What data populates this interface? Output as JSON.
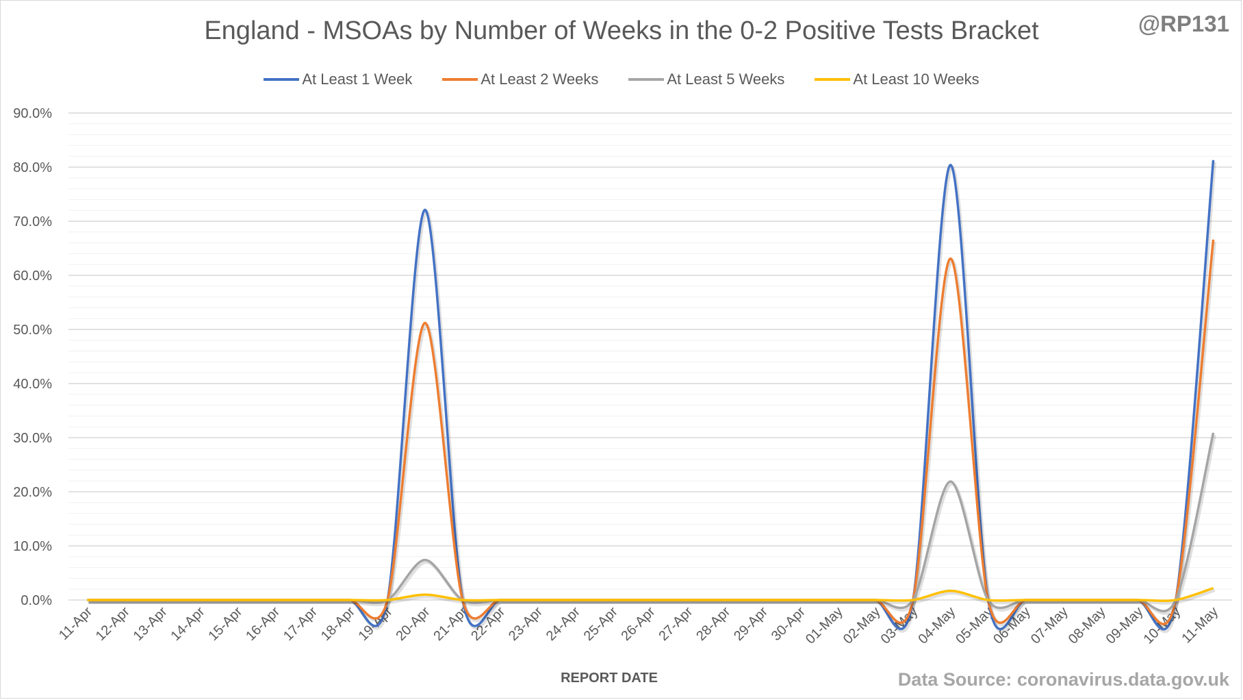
{
  "header": {
    "handle": "@RP131"
  },
  "footer": {
    "source": "Data Source: coronavirus.data.gov.uk"
  },
  "chart_data": {
    "type": "line",
    "title": "England - MSOAs by Number of Weeks in the 0-2 Positive Tests Bracket",
    "xlabel": "REPORT DATE",
    "ylabel": "",
    "ylim": [
      0,
      90
    ],
    "y_format": "percent-one-decimal",
    "yticks": [
      0,
      10,
      20,
      30,
      40,
      50,
      60,
      70,
      80,
      90
    ],
    "grid": "horizontal major and minor",
    "legend_position": "top",
    "smooth": true,
    "categories": [
      "11-Apr",
      "12-Apr",
      "13-Apr",
      "14-Apr",
      "15-Apr",
      "16-Apr",
      "17-Apr",
      "18-Apr",
      "19-Apr",
      "20-Apr",
      "21-Apr",
      "22-Apr",
      "23-Apr",
      "24-Apr",
      "25-Apr",
      "26-Apr",
      "27-Apr",
      "28-Apr",
      "29-Apr",
      "30-Apr",
      "01-May",
      "02-May",
      "03-May",
      "04-May",
      "05-May",
      "06-May",
      "07-May",
      "08-May",
      "09-May",
      "10-May",
      "11-May"
    ],
    "series": [
      {
        "name": "At Least 1 Week",
        "color": "#4472c4",
        "values": [
          0,
          0,
          0,
          0,
          0,
          0,
          0,
          0,
          0,
          72.1,
          0,
          0,
          0,
          0,
          0,
          0,
          0,
          0,
          0,
          0,
          0,
          0,
          0,
          80.4,
          0,
          0,
          0,
          0,
          0,
          0,
          81.3
        ]
      },
      {
        "name": "At Least 2 Weeks",
        "color": "#ed7d31",
        "values": [
          0,
          0,
          0,
          0,
          0,
          0,
          0,
          0,
          0,
          51.2,
          0,
          0,
          0,
          0,
          0,
          0,
          0,
          0,
          0,
          0,
          0,
          0,
          0,
          63.1,
          0,
          0,
          0,
          0,
          0,
          0,
          66.6
        ]
      },
      {
        "name": "At Least 5 Weeks",
        "color": "#a5a5a5",
        "values": [
          0,
          0,
          0,
          0,
          0,
          0,
          0,
          0,
          0,
          7.4,
          0,
          0,
          0,
          0,
          0,
          0,
          0,
          0,
          0,
          0,
          0,
          0,
          0,
          21.9,
          0,
          0,
          0,
          0,
          0,
          0,
          30.9
        ]
      },
      {
        "name": "At Least 10 Weeks",
        "color": "#ffc000",
        "values": [
          0,
          0,
          0,
          0,
          0,
          0,
          0,
          0,
          0,
          1.0,
          0,
          0,
          0,
          0,
          0,
          0,
          0,
          0,
          0,
          0,
          0,
          0,
          0,
          1.7,
          0,
          0,
          0,
          0,
          0,
          0,
          2.2
        ]
      }
    ]
  }
}
